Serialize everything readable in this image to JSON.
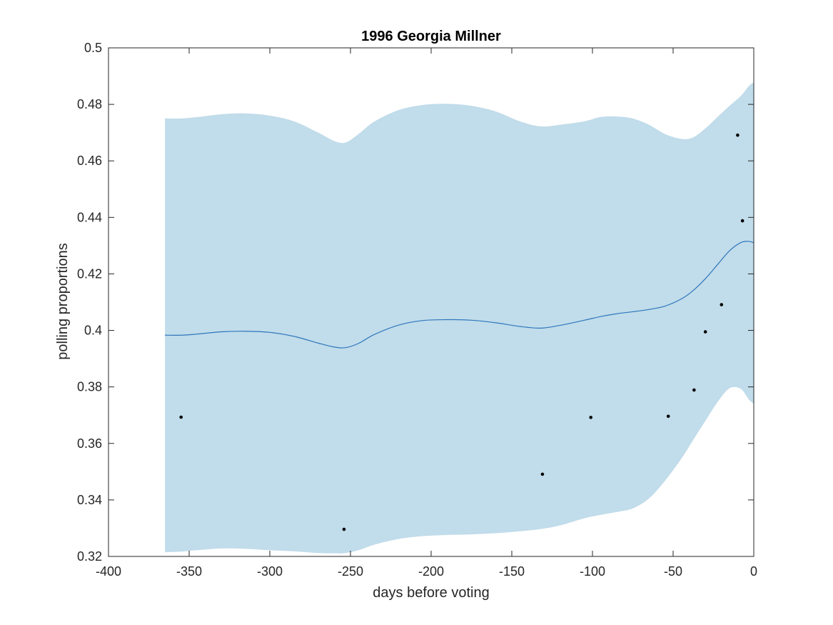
{
  "chart_data": {
    "type": "line",
    "title": "1996 Georgia Millner",
    "xlabel": "days before voting",
    "ylabel": "polling proportions",
    "xlim": [
      -400,
      0
    ],
    "ylim": [
      0.32,
      0.5
    ],
    "xticks": [
      -400,
      -350,
      -300,
      -250,
      -200,
      -150,
      -100,
      -50,
      0
    ],
    "xtick_labels": [
      "-400",
      "-350",
      "-300",
      "-250",
      "-200",
      "-150",
      "-100",
      "-50",
      "0"
    ],
    "yticks": [
      0.32,
      0.34,
      0.36,
      0.38,
      0.4,
      0.42,
      0.44,
      0.46,
      0.48,
      0.5
    ],
    "ytick_labels": [
      "0.32",
      "0.34",
      "0.36",
      "0.38",
      "0.4",
      "0.42",
      "0.44",
      "0.46",
      "0.48",
      "0.5"
    ],
    "grid": false,
    "colors": {
      "band": "#c1dcea",
      "mean": "#2e77bd",
      "points": "#000000",
      "axes": "#262626"
    },
    "band": {
      "x": [
        -365,
        -355,
        -345,
        -330,
        -315,
        -300,
        -285,
        -270,
        -260,
        -253,
        -245,
        -235,
        -220,
        -205,
        -190,
        -175,
        -160,
        -145,
        -132,
        -120,
        -105,
        -95,
        -85,
        -75,
        -65,
        -55,
        -45,
        -38,
        -30,
        -22,
        -15,
        -8,
        -3,
        0
      ],
      "upper": [
        0.475,
        0.475,
        0.4755,
        0.4765,
        0.4768,
        0.476,
        0.474,
        0.47,
        0.467,
        0.4665,
        0.4695,
        0.474,
        0.478,
        0.4798,
        0.4802,
        0.4795,
        0.4775,
        0.474,
        0.4722,
        0.4728,
        0.474,
        0.4755,
        0.4757,
        0.475,
        0.4728,
        0.4695,
        0.4678,
        0.4682,
        0.4715,
        0.4758,
        0.4795,
        0.483,
        0.4865,
        0.4878
      ],
      "lower": [
        0.3215,
        0.3217,
        0.3222,
        0.3228,
        0.3227,
        0.3222,
        0.3218,
        0.3212,
        0.3211,
        0.3212,
        0.3222,
        0.3242,
        0.3262,
        0.3272,
        0.3276,
        0.3278,
        0.3282,
        0.3289,
        0.3297,
        0.331,
        0.3335,
        0.3347,
        0.3357,
        0.337,
        0.3405,
        0.3468,
        0.3545,
        0.3608,
        0.368,
        0.375,
        0.3795,
        0.3793,
        0.3755,
        0.374
      ]
    },
    "series": [
      {
        "x": [
          -365,
          -355,
          -345,
          -330,
          -315,
          -300,
          -285,
          -270,
          -260,
          -253,
          -245,
          -235,
          -220,
          -205,
          -190,
          -175,
          -160,
          -145,
          -132,
          -120,
          -105,
          -95,
          -85,
          -75,
          -65,
          -55,
          -45,
          -38,
          -30,
          -22,
          -15,
          -8,
          -3,
          0
        ],
        "values": [
          0.3983,
          0.3983,
          0.3987,
          0.3995,
          0.3997,
          0.3993,
          0.3979,
          0.3955,
          0.3941,
          0.3939,
          0.3954,
          0.3986,
          0.4019,
          0.4035,
          0.4038,
          0.4036,
          0.4027,
          0.4014,
          0.4008,
          0.4018,
          0.4036,
          0.4049,
          0.4059,
          0.4066,
          0.4074,
          0.4086,
          0.4111,
          0.4139,
          0.4183,
          0.4236,
          0.4282,
          0.4311,
          0.4315,
          0.431
        ]
      }
    ],
    "points": [
      {
        "x": -355,
        "y": 0.3693
      },
      {
        "x": -254,
        "y": 0.3296
      },
      {
        "x": -131,
        "y": 0.3491
      },
      {
        "x": -101,
        "y": 0.3692
      },
      {
        "x": -53,
        "y": 0.3696
      },
      {
        "x": -37,
        "y": 0.3789
      },
      {
        "x": -30,
        "y": 0.3995
      },
      {
        "x": -20,
        "y": 0.4091
      },
      {
        "x": -10,
        "y": 0.4691
      },
      {
        "x": -7,
        "y": 0.4388
      }
    ]
  }
}
